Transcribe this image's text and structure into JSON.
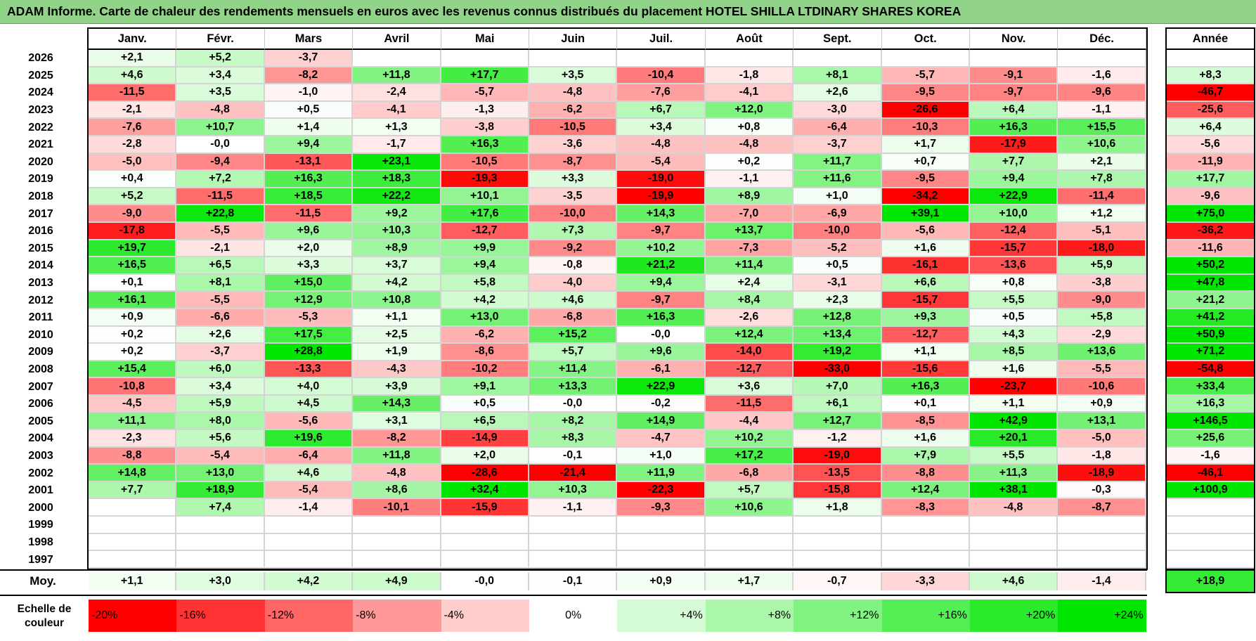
{
  "title": "ADAM Informe. Carte de chaleur des rendements mensuels en euros avec les revenus connus distribués du placement HOTEL SHILLA LTDINARY SHARES KOREA",
  "colors": {
    "title_bg": "#92d38a",
    "min": "#ff0000",
    "mid": "#ffffff",
    "max": "#00e600"
  },
  "chart_data": {
    "type": "heatmap",
    "columns": [
      "Janv.",
      "Févr.",
      "Mars",
      "Avril",
      "Mai",
      "Juin",
      "Juil.",
      "Août",
      "Sept.",
      "Oct.",
      "Nov.",
      "Déc."
    ],
    "year_header": "Année",
    "rows": [
      {
        "year": "2026",
        "values": [
          "+2,1",
          "+5,2",
          "-3,7",
          "",
          "",
          "",
          "",
          "",
          "",
          "",
          "",
          ""
        ],
        "annual": ""
      },
      {
        "year": "2025",
        "values": [
          "+4,6",
          "+3,4",
          "-8,2",
          "+11,8",
          "+17,7",
          "+3,5",
          "-10,4",
          "-1,8",
          "+8,1",
          "-5,7",
          "-9,1",
          "-1,6"
        ],
        "annual": "+8,3"
      },
      {
        "year": "2024",
        "values": [
          "-11,5",
          "+3,5",
          "-1,0",
          "-2,4",
          "-5,7",
          "-4,8",
          "-7,6",
          "-4,1",
          "+2,6",
          "-9,5",
          "-9,7",
          "-9,6"
        ],
        "annual": "-46,7"
      },
      {
        "year": "2023",
        "values": [
          "-2,1",
          "-4,8",
          "+0,5",
          "-4,1",
          "-1,3",
          "-6,2",
          "+6,7",
          "+12,0",
          "-3,0",
          "-26,6",
          "+6,4",
          "-1,1"
        ],
        "annual": "-25,6"
      },
      {
        "year": "2022",
        "values": [
          "-7,6",
          "+10,7",
          "+1,4",
          "+1,3",
          "-3,8",
          "-10,5",
          "+3,4",
          "+0,8",
          "-6,4",
          "-10,3",
          "+16,3",
          "+15,5"
        ],
        "annual": "+6,4"
      },
      {
        "year": "2021",
        "values": [
          "-2,8",
          "-0,0",
          "+9,4",
          "-1,7",
          "+16,3",
          "-3,6",
          "-4,8",
          "-4,8",
          "-3,7",
          "+1,7",
          "-17,9",
          "+10,6"
        ],
        "annual": "-5,6"
      },
      {
        "year": "2020",
        "values": [
          "-5,0",
          "-9,4",
          "-13,1",
          "+23,1",
          "-10,5",
          "-8,7",
          "-5,4",
          "+0,2",
          "+11,7",
          "+0,7",
          "+7,7",
          "+2,1"
        ],
        "annual": "-11,9"
      },
      {
        "year": "2019",
        "values": [
          "+0,4",
          "+7,2",
          "+16,3",
          "+18,3",
          "-19,3",
          "+3,3",
          "-19,0",
          "-1,1",
          "+11,6",
          "-9,5",
          "+9,4",
          "+7,8"
        ],
        "annual": "+17,7"
      },
      {
        "year": "2018",
        "values": [
          "+5,2",
          "-11,5",
          "+18,5",
          "+22,2",
          "+10,1",
          "-3,5",
          "-19,9",
          "+8,9",
          "+1,0",
          "-34,2",
          "+22,9",
          "-11,4"
        ],
        "annual": "-9,6"
      },
      {
        "year": "2017",
        "values": [
          "-9,0",
          "+22,8",
          "-11,5",
          "+9,2",
          "+17,6",
          "-10,0",
          "+14,3",
          "-7,0",
          "-6,9",
          "+39,1",
          "+10,0",
          "+1,2"
        ],
        "annual": "+75,0"
      },
      {
        "year": "2016",
        "values": [
          "-17,8",
          "-5,5",
          "+9,6",
          "+10,3",
          "-12,7",
          "+7,3",
          "-9,7",
          "+13,7",
          "-10,0",
          "-5,6",
          "-12,4",
          "-5,1"
        ],
        "annual": "-36,2"
      },
      {
        "year": "2015",
        "values": [
          "+19,7",
          "-2,1",
          "+2,0",
          "+8,9",
          "+9,9",
          "-9,2",
          "+10,2",
          "-7,3",
          "-5,2",
          "+1,6",
          "-15,7",
          "-18,0"
        ],
        "annual": "-11,6"
      },
      {
        "year": "2014",
        "values": [
          "+16,5",
          "+6,5",
          "+3,3",
          "+3,7",
          "+9,4",
          "-0,8",
          "+21,2",
          "+11,4",
          "+0,5",
          "-16,1",
          "-13,6",
          "+5,9"
        ],
        "annual": "+50,2"
      },
      {
        "year": "2013",
        "values": [
          "+0,1",
          "+8,1",
          "+15,0",
          "+4,2",
          "+5,8",
          "-4,0",
          "+9,4",
          "+2,4",
          "-3,1",
          "+6,6",
          "+0,8",
          "-3,8"
        ],
        "annual": "+47,8"
      },
      {
        "year": "2012",
        "values": [
          "+16,1",
          "-5,5",
          "+12,9",
          "+10,8",
          "+4,2",
          "+4,6",
          "-9,7",
          "+8,4",
          "+2,3",
          "-15,7",
          "+5,5",
          "-9,0"
        ],
        "annual": "+21,2"
      },
      {
        "year": "2011",
        "values": [
          "+0,9",
          "-6,6",
          "-5,3",
          "+1,1",
          "+13,0",
          "-6,8",
          "+16,3",
          "-2,6",
          "+12,8",
          "+9,3",
          "+0,5",
          "+5,8"
        ],
        "annual": "+41,2"
      },
      {
        "year": "2010",
        "values": [
          "+0,2",
          "+2,6",
          "+17,5",
          "+2,5",
          "-6,2",
          "+15,2",
          "-0,0",
          "+12,4",
          "+13,4",
          "-12,7",
          "+4,3",
          "-2,9"
        ],
        "annual": "+50,9"
      },
      {
        "year": "2009",
        "values": [
          "+0,2",
          "-3,7",
          "+28,8",
          "+1,9",
          "-8,6",
          "+5,7",
          "+9,6",
          "-14,0",
          "+19,2",
          "+1,1",
          "+8,5",
          "+13,6"
        ],
        "annual": "+71,2"
      },
      {
        "year": "2008",
        "values": [
          "+15,4",
          "+6,0",
          "-13,3",
          "-4,3",
          "-10,2",
          "+11,4",
          "-6,1",
          "-12,7",
          "-33,0",
          "-15,6",
          "+1,6",
          "-5,5"
        ],
        "annual": "-54,8"
      },
      {
        "year": "2007",
        "values": [
          "-10,8",
          "+3,4",
          "+4,0",
          "+3,9",
          "+9,1",
          "+13,3",
          "+22,9",
          "+3,6",
          "+7,0",
          "+16,3",
          "-23,7",
          "-10,6"
        ],
        "annual": "+33,4"
      },
      {
        "year": "2006",
        "values": [
          "-4,5",
          "+5,9",
          "+4,5",
          "+14,3",
          "+0,5",
          "-0,0",
          "-0,2",
          "-11,5",
          "+6,1",
          "+0,1",
          "+1,1",
          "+0,9"
        ],
        "annual": "+16,3"
      },
      {
        "year": "2005",
        "values": [
          "+11,1",
          "+8,0",
          "-5,6",
          "+3,1",
          "+6,5",
          "+8,2",
          "+14,9",
          "-4,4",
          "+12,7",
          "-8,5",
          "+42,9",
          "+13,1"
        ],
        "annual": "+146,5"
      },
      {
        "year": "2004",
        "values": [
          "-2,3",
          "+5,6",
          "+19,6",
          "-8,2",
          "-14,9",
          "+8,3",
          "-4,7",
          "+10,2",
          "-1,2",
          "+1,6",
          "+20,1",
          "-5,0"
        ],
        "annual": "+25,6"
      },
      {
        "year": "2003",
        "values": [
          "-8,8",
          "-5,4",
          "-6,4",
          "+11,8",
          "+2,0",
          "-0,1",
          "+1,0",
          "+17,2",
          "-19,0",
          "+7,9",
          "+5,5",
          "-1,8"
        ],
        "annual": "-1,6"
      },
      {
        "year": "2002",
        "values": [
          "+14,8",
          "+13,0",
          "+4,6",
          "-4,8",
          "-28,6",
          "-21,4",
          "+11,9",
          "-6,8",
          "-13,5",
          "-8,8",
          "+11,3",
          "-18,9"
        ],
        "annual": "-46,1"
      },
      {
        "year": "2001",
        "values": [
          "+7,7",
          "+18,9",
          "-5,4",
          "+8,6",
          "+32,4",
          "+10,3",
          "-22,3",
          "+5,7",
          "-15,8",
          "+12,4",
          "+38,1",
          "-0,3"
        ],
        "annual": "+100,9"
      },
      {
        "year": "2000",
        "values": [
          "",
          "+7,4",
          "-1,4",
          "-10,1",
          "-15,9",
          "-1,1",
          "-9,3",
          "+10,6",
          "+1,8",
          "-8,3",
          "-4,8",
          "-8,7"
        ],
        "annual": ""
      },
      {
        "year": "1999",
        "values": [
          "",
          "",
          "",
          "",
          "",
          "",
          "",
          "",
          "",
          "",
          "",
          ""
        ],
        "annual": ""
      },
      {
        "year": "1998",
        "values": [
          "",
          "",
          "",
          "",
          "",
          "",
          "",
          "",
          "",
          "",
          "",
          ""
        ],
        "annual": ""
      },
      {
        "year": "1997",
        "values": [
          "",
          "",
          "",
          "",
          "",
          "",
          "",
          "",
          "",
          "",
          "",
          ""
        ],
        "annual": ""
      }
    ],
    "average": {
      "label": "Moy.",
      "values": [
        "+1,1",
        "+3,0",
        "+4,2",
        "+4,9",
        "-0,0",
        "-0,1",
        "+0,9",
        "+1,7",
        "-0,7",
        "-3,3",
        "+4,6",
        "-1,4"
      ],
      "annual": "+18,9"
    },
    "scale": {
      "label_line1": "Echelle de",
      "label_line2": "couleur",
      "steps": [
        "-20%",
        "-16%",
        "-12%",
        "-8%",
        "-4%",
        "0%",
        "+4%",
        "+8%",
        "+12%",
        "+16%",
        "+20%",
        "+24%"
      ],
      "step_values": [
        -20,
        -16,
        -12,
        -8,
        -4,
        0,
        4,
        8,
        12,
        16,
        20,
        24
      ]
    }
  }
}
